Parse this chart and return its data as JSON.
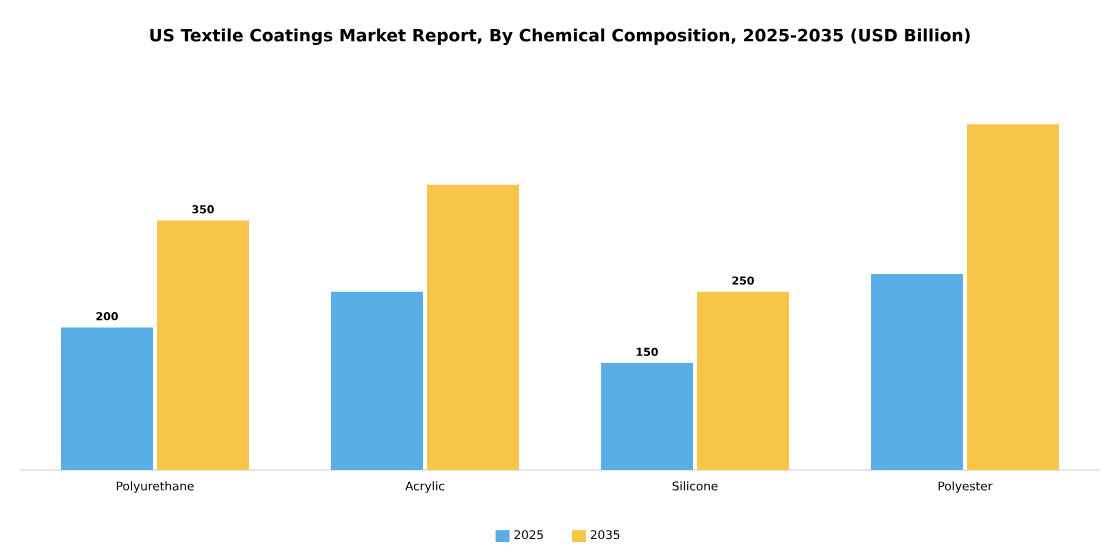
{
  "chart_data": {
    "type": "bar",
    "title": "US Textile Coatings Market Report, By Chemical Composition, 2025-2035 (USD Billion)",
    "categories": [
      "Polyurethane",
      "Acrylic",
      "Silicone",
      "Polyester"
    ],
    "series": [
      {
        "name": "2025",
        "color": "#5aaee6",
        "values": [
          200,
          250,
          150,
          275
        ],
        "value_labels": [
          "200",
          null,
          "150",
          null
        ]
      },
      {
        "name": "2035",
        "color": "#f7c548",
        "values": [
          350,
          400,
          250,
          485
        ],
        "value_labels": [
          "350",
          null,
          "250",
          null
        ]
      }
    ],
    "legend": "bottom"
  }
}
